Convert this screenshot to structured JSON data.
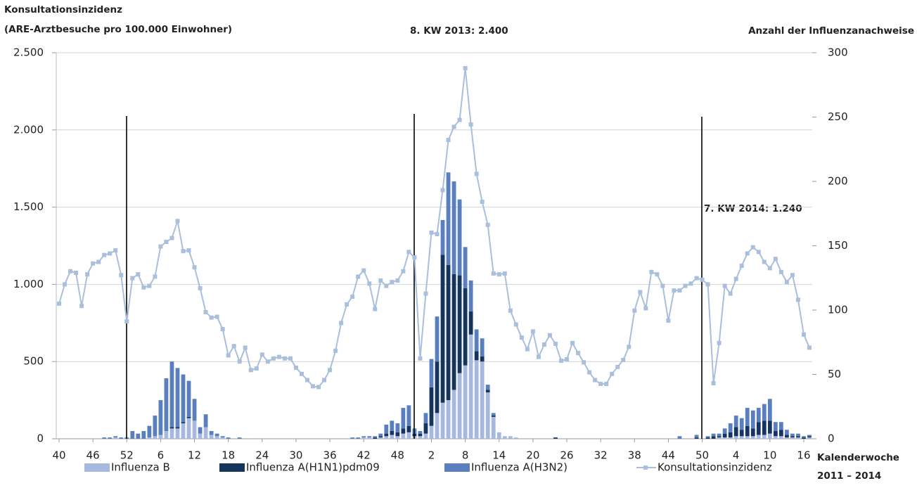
{
  "chart_data": {
    "type": "bar",
    "stacked": true,
    "y_title": [
      "Konsultationsinzidenz",
      "(ARE-Arztbesuche pro 100.000 Einwohner)"
    ],
    "y2_title": "Anzahl der Influenzanachweise",
    "x_title": [
      "Kalenderwoche",
      "2011 – 2014"
    ],
    "annotations": [
      "8. KW 2013: 2.400",
      "7. KW 2014: 1.240"
    ],
    "grid": true,
    "ylim": [
      0,
      2500
    ],
    "yticks": [
      0,
      500,
      {
        "value": 1000,
        "label": "1.000"
      },
      {
        "value": 1500,
        "label": "1.500"
      },
      {
        "value": 2000,
        "label": "2.000"
      },
      {
        "value": 2500,
        "label": "2.500"
      }
    ],
    "y2lim": [
      0,
      300
    ],
    "y2ticks": [
      0,
      50,
      100,
      150,
      200,
      250,
      300
    ],
    "categories": [
      "40",
      null,
      null,
      null,
      null,
      null,
      "46",
      null,
      null,
      null,
      null,
      null,
      "52",
      null,
      null,
      null,
      null,
      null,
      "6",
      null,
      null,
      null,
      null,
      null,
      "12",
      null,
      null,
      null,
      null,
      null,
      "18",
      null,
      null,
      null,
      null,
      null,
      "24",
      null,
      null,
      null,
      null,
      null,
      "30",
      null,
      null,
      null,
      null,
      null,
      "36",
      null,
      null,
      null,
      null,
      null,
      "42",
      null,
      null,
      null,
      null,
      null,
      "48",
      null,
      null,
      null,
      null,
      null,
      "2",
      null,
      null,
      null,
      null,
      null,
      "8",
      null,
      null,
      null,
      null,
      null,
      "14",
      null,
      null,
      null,
      null,
      null,
      "20",
      null,
      null,
      null,
      null,
      null,
      "26",
      null,
      null,
      null,
      null,
      null,
      "32",
      null,
      null,
      null,
      null,
      null,
      "38",
      null,
      null,
      null,
      null,
      null,
      "44",
      null,
      null,
      null,
      null,
      null,
      "50",
      null,
      null,
      null,
      null,
      null,
      "4",
      null,
      null,
      null,
      null,
      null,
      "10",
      null,
      null,
      null,
      null,
      null,
      "16",
      null
    ],
    "series": [
      {
        "name": "Influenza B",
        "type": "bar",
        "axis": "y2",
        "color": "#a7b8de",
        "values": [
          0,
          0,
          0,
          0,
          0,
          0,
          0,
          0,
          0,
          0,
          1,
          0,
          0,
          0,
          0,
          0,
          1,
          2,
          3,
          6,
          8,
          8,
          12,
          16,
          14,
          4,
          9,
          3,
          2,
          1,
          0,
          0,
          0,
          0,
          0,
          0,
          0,
          0,
          0,
          0,
          0,
          0,
          0,
          0,
          0,
          0,
          0,
          0,
          0,
          0,
          0,
          0,
          0,
          0,
          1,
          1,
          0,
          1,
          2,
          3,
          2,
          4,
          5,
          2,
          2,
          4,
          10,
          20,
          28,
          30,
          38,
          51,
          57,
          81,
          61,
          60,
          36,
          17,
          5,
          2,
          2,
          1,
          0,
          0,
          0,
          0,
          0,
          0,
          0,
          0,
          0,
          0,
          0,
          0,
          0,
          0,
          0,
          0,
          0,
          0,
          0,
          0,
          0,
          0,
          0,
          0,
          0,
          0,
          0,
          0,
          0,
          0,
          0,
          0,
          0,
          0,
          0,
          1,
          1,
          1,
          2,
          2,
          2,
          2,
          3,
          3,
          4,
          2,
          2,
          1,
          1,
          1,
          0,
          1
        ]
      },
      {
        "name": "Influenza A(H1N1)pdm09",
        "type": "bar",
        "axis": "y2",
        "color": "#16355c",
        "values": [
          0,
          0,
          0,
          0,
          0,
          0,
          0,
          0,
          0,
          0,
          0,
          0,
          0,
          0,
          0,
          0,
          0,
          0,
          0,
          0,
          1,
          1,
          1,
          1,
          0,
          0,
          0,
          0,
          0,
          0,
          0,
          0,
          0,
          0,
          0,
          0,
          0,
          0,
          0,
          0,
          0,
          0,
          0,
          0,
          0,
          0,
          0,
          0,
          0,
          0,
          0,
          0,
          0,
          0,
          0,
          0,
          1,
          1,
          2,
          3,
          3,
          4,
          5,
          2,
          2,
          8,
          30,
          40,
          115,
          105,
          90,
          76,
          60,
          18,
          7,
          4,
          2,
          1,
          0,
          0,
          0,
          0,
          0,
          0,
          0,
          0,
          0,
          0,
          1,
          0,
          0,
          0,
          0,
          0,
          0,
          0,
          0,
          0,
          0,
          0,
          0,
          0,
          0,
          0,
          0,
          0,
          0,
          0,
          0,
          0,
          0,
          0,
          0,
          1,
          0,
          1,
          2,
          1,
          3,
          4,
          7,
          5,
          8,
          6,
          10,
          11,
          10,
          4,
          5,
          2,
          1,
          1,
          1,
          1
        ]
      },
      {
        "name": "Influenza A(H3N2)",
        "type": "bar",
        "axis": "y2",
        "color": "#5a7fbe",
        "values": [
          0,
          0,
          0,
          0,
          0,
          0,
          0,
          0,
          1,
          1,
          1,
          1,
          1,
          6,
          4,
          6,
          9,
          16,
          27,
          41,
          51,
          46,
          37,
          28,
          17,
          5,
          10,
          3,
          2,
          1,
          1,
          0,
          1,
          0,
          0,
          0,
          0,
          0,
          0,
          0,
          0,
          0,
          0,
          0,
          0,
          0,
          0,
          0,
          0,
          0,
          0,
          0,
          1,
          1,
          1,
          1,
          1,
          2,
          7,
          8,
          7,
          16,
          16,
          4,
          2,
          8,
          22,
          35,
          27,
          72,
          72,
          59,
          32,
          24,
          17,
          14,
          4,
          2,
          0,
          0,
          0,
          0,
          0,
          0,
          0,
          0,
          0,
          0,
          0,
          0,
          0,
          0,
          0,
          0,
          0,
          0,
          0,
          0,
          0,
          0,
          0,
          0,
          0,
          0,
          0,
          0,
          0,
          0,
          0,
          0,
          2,
          0,
          0,
          2,
          0,
          1,
          2,
          2,
          4,
          7,
          9,
          9,
          14,
          14,
          11,
          13,
          17,
          7,
          6,
          4,
          2,
          2,
          1,
          1
        ]
      },
      {
        "name": "Konsultationsinzidenz",
        "type": "line",
        "axis": "y",
        "color": "#a9bfdc",
        "values": [
          875,
          1000,
          1085,
          1075,
          860,
          1065,
          1135,
          1145,
          1190,
          1200,
          1220,
          1060,
          760,
          1040,
          1065,
          980,
          990,
          1050,
          1245,
          1275,
          1300,
          1410,
          1215,
          1220,
          1110,
          975,
          820,
          785,
          790,
          710,
          540,
          600,
          500,
          590,
          445,
          455,
          545,
          500,
          520,
          530,
          520,
          520,
          460,
          420,
          380,
          340,
          335,
          380,
          445,
          570,
          750,
          870,
          920,
          1050,
          1090,
          1005,
          840,
          1025,
          990,
          1015,
          1025,
          1085,
          1210,
          1175,
          520,
          940,
          1335,
          1325,
          1610,
          1935,
          2020,
          2065,
          2400,
          2035,
          1715,
          1535,
          1385,
          1070,
          1065,
          1070,
          830,
          740,
          655,
          580,
          695,
          530,
          610,
          670,
          615,
          505,
          515,
          620,
          555,
          495,
          430,
          380,
          355,
          355,
          420,
          465,
          510,
          595,
          830,
          950,
          845,
          1080,
          1065,
          990,
          765,
          960,
          960,
          990,
          1005,
          1040,
          1030,
          1000,
          360,
          620,
          990,
          940,
          1035,
          1120,
          1200,
          1240,
          1210,
          1145,
          1105,
          1165,
          1080,
          1015,
          1060,
          900,
          675,
          590
        ]
      }
    ]
  }
}
